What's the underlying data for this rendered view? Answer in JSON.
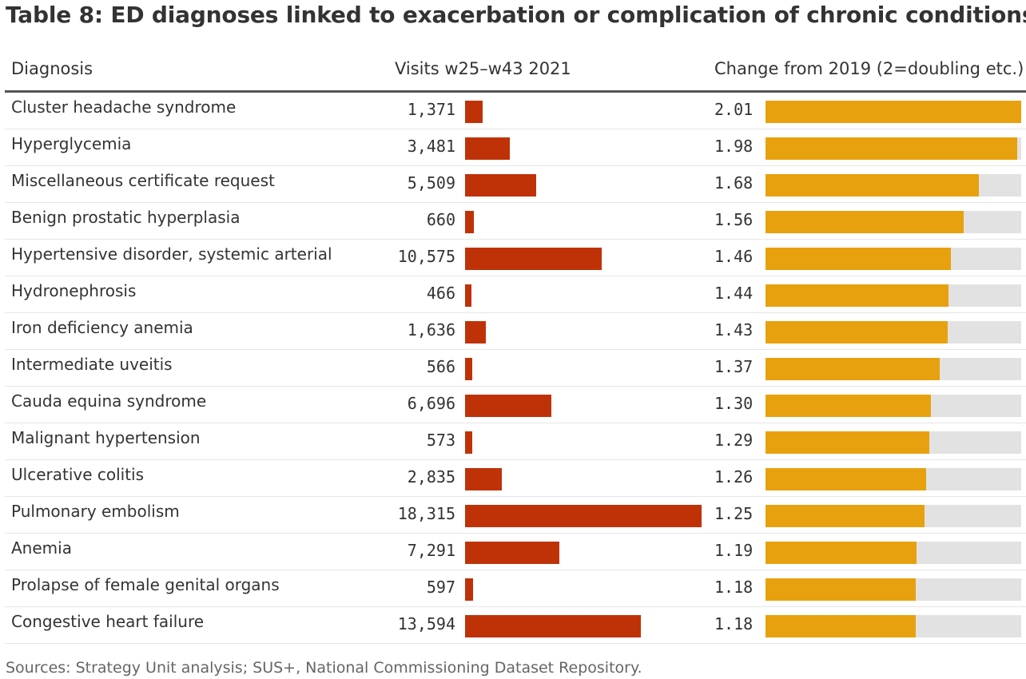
{
  "title": "Table 8: ED diagnoses linked to exacerbation or complication of chronic conditions",
  "headers": {
    "diagnosis": "Diagnosis",
    "visits": "Visits w25–w43 2021",
    "change": "Change from 2019 (2=doubling etc.)"
  },
  "source": "Sources: Strategy Unit analysis; SUS+, National Commissioning Dataset Repository.",
  "colors": {
    "visits_bar": "#bf3208",
    "change_bar": "#e8a10e",
    "change_track": "#e2e2e2"
  },
  "chart_data": {
    "type": "table",
    "visits_max": 18315,
    "change_max": 2.01,
    "rows": [
      {
        "diagnosis": "Cluster headache syndrome",
        "visits": 1371,
        "visits_label": "1,371",
        "change": 2.01,
        "change_label": "2.01"
      },
      {
        "diagnosis": "Hyperglycemia",
        "visits": 3481,
        "visits_label": "3,481",
        "change": 1.98,
        "change_label": "1.98"
      },
      {
        "diagnosis": "Miscellaneous certificate request",
        "visits": 5509,
        "visits_label": "5,509",
        "change": 1.68,
        "change_label": "1.68"
      },
      {
        "diagnosis": "Benign prostatic hyperplasia",
        "visits": 660,
        "visits_label": "660",
        "change": 1.56,
        "change_label": "1.56"
      },
      {
        "diagnosis": "Hypertensive disorder, systemic arterial",
        "visits": 10575,
        "visits_label": "10,575",
        "change": 1.46,
        "change_label": "1.46"
      },
      {
        "diagnosis": "Hydronephrosis",
        "visits": 466,
        "visits_label": "466",
        "change": 1.44,
        "change_label": "1.44"
      },
      {
        "diagnosis": "Iron deficiency anemia",
        "visits": 1636,
        "visits_label": "1,636",
        "change": 1.43,
        "change_label": "1.43"
      },
      {
        "diagnosis": "Intermediate uveitis",
        "visits": 566,
        "visits_label": "566",
        "change": 1.37,
        "change_label": "1.37"
      },
      {
        "diagnosis": "Cauda equina syndrome",
        "visits": 6696,
        "visits_label": "6,696",
        "change": 1.3,
        "change_label": "1.30"
      },
      {
        "diagnosis": "Malignant hypertension",
        "visits": 573,
        "visits_label": "573",
        "change": 1.29,
        "change_label": "1.29"
      },
      {
        "diagnosis": "Ulcerative colitis",
        "visits": 2835,
        "visits_label": "2,835",
        "change": 1.26,
        "change_label": "1.26"
      },
      {
        "diagnosis": "Pulmonary embolism",
        "visits": 18315,
        "visits_label": "18,315",
        "change": 1.25,
        "change_label": "1.25"
      },
      {
        "diagnosis": "Anemia",
        "visits": 7291,
        "visits_label": "7,291",
        "change": 1.19,
        "change_label": "1.19"
      },
      {
        "diagnosis": "Prolapse of female genital organs",
        "visits": 597,
        "visits_label": "597",
        "change": 1.18,
        "change_label": "1.18"
      },
      {
        "diagnosis": "Congestive heart failure",
        "visits": 13594,
        "visits_label": "13,594",
        "change": 1.18,
        "change_label": "1.18"
      }
    ]
  }
}
